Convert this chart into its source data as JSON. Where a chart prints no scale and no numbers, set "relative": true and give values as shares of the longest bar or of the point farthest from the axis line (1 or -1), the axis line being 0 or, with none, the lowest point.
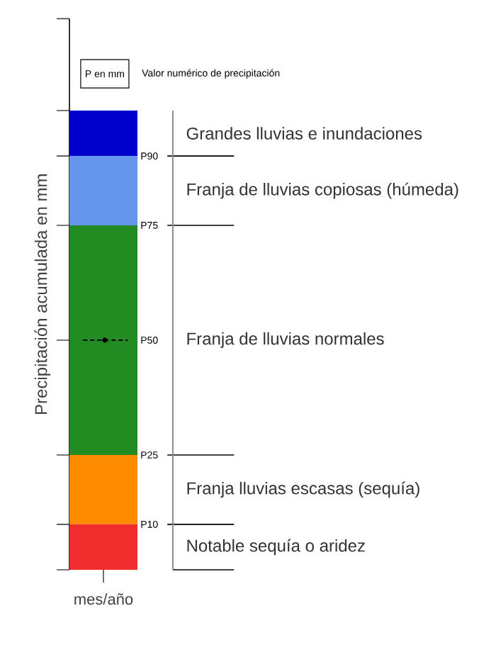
{
  "chart_data": {
    "type": "bar",
    "stacked": true,
    "relative": true,
    "categories": [
      "mes/año"
    ],
    "ylabel": "Precipitación acumulada en mm",
    "series": [
      {
        "color": "#f02c2c",
        "values": [
          0.099
        ]
      },
      {
        "color": "#ff8c00",
        "values": [
          0.151
        ]
      },
      {
        "color": "#228b22",
        "values": [
          0.5
        ]
      },
      {
        "color": "#6495ed",
        "values": [
          0.151
        ]
      },
      {
        "color": "#0000cd",
        "values": [
          0.099
        ]
      }
    ],
    "ref_lines": [
      {
        "axis": "y",
        "value": 0.901,
        "label": "P90"
      },
      {
        "axis": "y",
        "value": 0.75,
        "label": "P75"
      },
      {
        "axis": "y",
        "value": 0.5,
        "label": "P50",
        "line_style": "dashed"
      },
      {
        "axis": "y",
        "value": 0.25,
        "label": "P25"
      },
      {
        "axis": "y",
        "value": 0.099,
        "label": "P10"
      }
    ],
    "annotations": [
      "P en mm",
      "Valor numérico de precipitación",
      "Grandes lluvias e inundaciones",
      "Franja de lluvias copiosas (húmeda)",
      "Franja de lluvias normales",
      "Franja lluvias escasas (sequía)",
      "Notable sequía o aridez"
    ],
    "grid": false
  }
}
